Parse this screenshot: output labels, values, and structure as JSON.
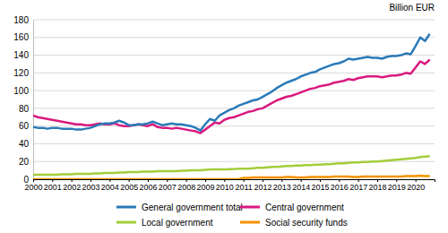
{
  "chart_data": {
    "type": "line",
    "y_label": "Billion EUR",
    "x": [
      2000,
      2000.25,
      2000.5,
      2000.75,
      2001,
      2001.25,
      2001.5,
      2001.75,
      2002,
      2002.25,
      2002.5,
      2002.75,
      2003,
      2003.25,
      2003.5,
      2003.75,
      2004,
      2004.25,
      2004.5,
      2004.75,
      2005,
      2005.25,
      2005.5,
      2005.75,
      2006,
      2006.25,
      2006.5,
      2006.75,
      2007,
      2007.25,
      2007.5,
      2007.75,
      2008,
      2008.25,
      2008.5,
      2008.75,
      2009,
      2009.25,
      2009.5,
      2009.75,
      2010,
      2010.25,
      2010.5,
      2010.75,
      2011,
      2011.25,
      2011.5,
      2011.75,
      2012,
      2012.25,
      2012.5,
      2012.75,
      2013,
      2013.25,
      2013.5,
      2013.75,
      2014,
      2014.25,
      2014.5,
      2014.75,
      2015,
      2015.25,
      2015.5,
      2015.75,
      2016,
      2016.25,
      2016.5,
      2016.75,
      2017,
      2017.25,
      2017.5,
      2017.75,
      2018,
      2018.25,
      2018.5,
      2018.75,
      2019,
      2019.25,
      2019.5,
      2019.75,
      2020,
      2020.25,
      2020.5,
      2020.75
    ],
    "series": [
      {
        "name": "General government total",
        "color": "#2a7ab8",
        "values": [
          59,
          58,
          58,
          57,
          58,
          58,
          57,
          57,
          57,
          56,
          56,
          57,
          58,
          60,
          62,
          63,
          63,
          64,
          66,
          64,
          61,
          61,
          62,
          62,
          63,
          65,
          63,
          61,
          62,
          63,
          62,
          62,
          61,
          60,
          58,
          55,
          62,
          68,
          66,
          72,
          75,
          78,
          80,
          83,
          85,
          87,
          89,
          90,
          93,
          96,
          99,
          103,
          106,
          109,
          111,
          113,
          116,
          118,
          120,
          121,
          124,
          126,
          128,
          130,
          131,
          133,
          136,
          135,
          136,
          137,
          138,
          137,
          137,
          136,
          138,
          139,
          139,
          140,
          142,
          141,
          150,
          160,
          156,
          164
        ]
      },
      {
        "name": "Central government",
        "color": "#d9197f",
        "values": [
          72,
          70,
          69,
          68,
          67,
          66,
          65,
          64,
          63,
          62,
          62,
          61,
          61,
          62,
          63,
          62,
          62,
          63,
          61,
          60,
          60,
          61,
          62,
          61,
          60,
          62,
          59,
          58,
          58,
          57,
          58,
          57,
          56,
          55,
          54,
          52,
          56,
          60,
          64,
          63,
          67,
          69,
          70,
          72,
          74,
          76,
          77,
          79,
          80,
          83,
          86,
          89,
          91,
          93,
          94,
          96,
          98,
          100,
          102,
          103,
          105,
          106,
          107,
          109,
          110,
          111,
          113,
          112,
          114,
          115,
          116,
          116,
          116,
          115,
          116,
          117,
          117,
          118,
          120,
          119,
          126,
          133,
          130,
          135
        ]
      },
      {
        "name": "Local government",
        "color": "#a3cd3b",
        "values": [
          5,
          5,
          5,
          5,
          5,
          5,
          5.5,
          5.5,
          5.5,
          6,
          6,
          6,
          6,
          6.5,
          6.5,
          7,
          7,
          7,
          7.5,
          7.5,
          8,
          8,
          8,
          8.5,
          8.5,
          8.5,
          9,
          9,
          9,
          9,
          9,
          9.5,
          9.5,
          10,
          10,
          10,
          10.5,
          11,
          11,
          11,
          11,
          11.5,
          11.5,
          12,
          12,
          12,
          12.5,
          13,
          13,
          13.5,
          14,
          14,
          14.5,
          15,
          15,
          15.5,
          15.5,
          16,
          16,
          16.5,
          16.5,
          17,
          17,
          17.5,
          18,
          18,
          18.5,
          19,
          19,
          19.5,
          19.5,
          20,
          20,
          20.5,
          21,
          21.5,
          22,
          22.5,
          23,
          23.5,
          24,
          25,
          25.5,
          26
        ]
      },
      {
        "name": "Social security funds",
        "color": "#f39200",
        "values": [
          0,
          0,
          0,
          0,
          0,
          0,
          0,
          0,
          0,
          0,
          0,
          0,
          0,
          0,
          0,
          0,
          0,
          0,
          0,
          0,
          0,
          0,
          0,
          0,
          0,
          0,
          0,
          0,
          0,
          0,
          0,
          0,
          0,
          0,
          0,
          0,
          0,
          0,
          0,
          0,
          0,
          0,
          0,
          0,
          1.5,
          1.5,
          2,
          2,
          2,
          2,
          2,
          2,
          2,
          2.5,
          2.5,
          2,
          2,
          2,
          2.5,
          2.5,
          2.5,
          2.5,
          2.5,
          3,
          3,
          3,
          3,
          2.5,
          2.5,
          3,
          3,
          3,
          3,
          3,
          3,
          3,
          3,
          3,
          3.5,
          3.5,
          3.5,
          4,
          3.5,
          3.5
        ]
      }
    ],
    "xlim": [
      2000,
      2021
    ],
    "xticks": [
      2000,
      2001,
      2002,
      2003,
      2004,
      2005,
      2006,
      2007,
      2008,
      2009,
      2010,
      2011,
      2012,
      2013,
      2014,
      2015,
      2016,
      2017,
      2018,
      2019,
      2020
    ],
    "ylim": [
      0,
      180
    ],
    "yticks": [
      0,
      20,
      40,
      60,
      80,
      100,
      120,
      140,
      160,
      180
    ],
    "grid": true,
    "legend": "bottom"
  }
}
